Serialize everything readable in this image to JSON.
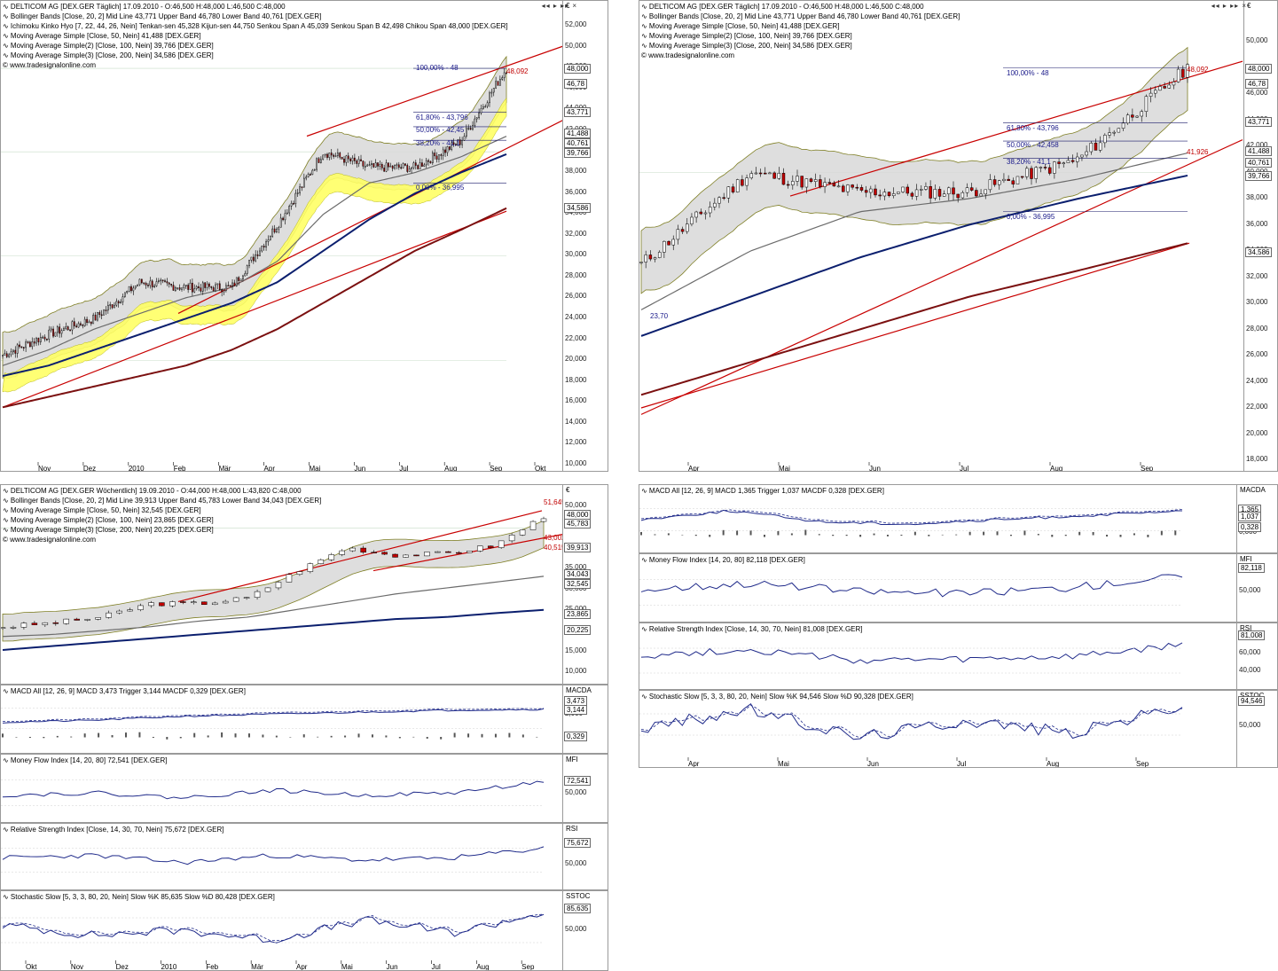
{
  "colors": {
    "band_fill": "#d9d9d9",
    "kumo": "#ffff66",
    "upper_band": "#6a6a00",
    "ma50": "#6b6b6b",
    "ma100": "#0b1f6e",
    "ma200": "#7b1010",
    "trend": "#c80000",
    "candle_up": "#ffffff",
    "candle_down": "#c00000",
    "osc": "#1f2a8a"
  },
  "panels": {
    "daily_long": {
      "legend": [
        "DELTICOM AG [DEX.GER  Täglich] 17.09.2010 - O:46,500 H:48,000 L:46,500 C:48,000",
        "Bollinger Bands [Close, 20, 2] Mid Line 43,771 Upper Band 46,780 Lower Band 40,761 [DEX.GER]",
        "Ichimoku Kinko Hyo [7, 22, 44, 26, Nein] Tenkan-sen 45,328 Kijun-sen 44,750 Senkou Span A 45,039 Senkou Span B 42,498 Chikou Span 48,000 [DEX.GER]",
        "Moving Average Simple [Close, 50, Nein] 41,488 [DEX.GER]",
        "Moving Average Simple(2) [Close, 100, Nein] 39,766 [DEX.GER]",
        "Moving Average Simple(3) [Close, 200, Nein] 34,586 [DEX.GER]",
        "© www.tradesignalonline.com"
      ],
      "currency": "€",
      "y_ticks": [
        "52,000",
        "50,000",
        "48,000",
        "46,000",
        "44,000",
        "42,000",
        "40,000",
        "38,000",
        "36,000",
        "34,000",
        "32,000",
        "30,000",
        "28,000",
        "26,000",
        "24,000",
        "22,000",
        "20,000",
        "18,000",
        "16,000",
        "14,000",
        "12,000",
        "10,000"
      ],
      "value_boxes": [
        "48,000",
        "46,78",
        "43,771",
        "41,488",
        "40,761",
        "39,766",
        "34,586"
      ],
      "fib": [
        "100,00% - 48",
        "61,80% - 43,796",
        "50,00% - 42,45",
        "38,20% - 41,1",
        "0,00% - 36,995"
      ],
      "price_label": "48,092",
      "x_labels": [
        "Nov",
        "Dez",
        "2010",
        "Feb",
        "Mär",
        "Apr",
        "Mai",
        "Jun",
        "Jul",
        "Aug",
        "Sep",
        "Okt"
      ]
    },
    "daily_short": {
      "legend": [
        "DELTICOM AG [DEX.GER  Täglich] 17.09.2010 - O:46,500 H:48,000 L:46,500 C:48,000",
        "Bollinger Bands [Close, 20, 2] Mid Line 43,771 Upper Band 46,780 Lower Band 40,761 [DEX.GER]",
        "Moving Average Simple [Close, 50, Nein] 41,488 [DEX.GER]",
        "Moving Average Simple(2) [Close, 100, Nein] 39,766 [DEX.GER]",
        "Moving Average Simple(3) [Close, 200, Nein] 34,586 [DEX.GER]",
        "© www.tradesignalonline.com"
      ],
      "currency": "€",
      "y_ticks": [
        "50,000",
        "48,000",
        "46,000",
        "44,000",
        "42,000",
        "40,000",
        "38,000",
        "36,000",
        "34,000",
        "32,000",
        "30,000",
        "28,000",
        "26,000",
        "24,000",
        "22,000",
        "20,000",
        "18,000"
      ],
      "value_boxes": [
        "48,000",
        "46,78",
        "43,771",
        "41,488",
        "40,761",
        "39,766",
        "34,586"
      ],
      "fib": [
        "100,00% - 48",
        "61,80% - 43,796",
        "50,00% - 42,458",
        "38,20% - 41,1",
        "0,00% - 36,995"
      ],
      "price_label": "48,092",
      "aux_label": "41,926",
      "low_label": "23,70",
      "x_labels": [
        "Apr",
        "Mai",
        "Jun",
        "Jul",
        "Aug",
        "Sep"
      ]
    },
    "weekly": {
      "legend": [
        "DELTICOM AG [DEX.GER  Wöchentlich] 19.09.2010 - O:44,000 H:48,000 L:43,820 C:48,000",
        "Bollinger Bands [Close, 20, 2] Mid Line 39,913 Upper Band 45,783 Lower Band 34,043 [DEX.GER]",
        "Moving Average Simple [Close, 50, Nein] 32,545 [DEX.GER]",
        "Moving Average Simple(2) [Close, 100, Nein] 23,865 [DEX.GER]",
        "Moving Average Simple(3) [Close, 200, Nein] 20,225 [DEX.GER]",
        "© www.tradesignalonline.com"
      ],
      "currency": "€",
      "y_ticks": [
        "50,000",
        "45,000",
        "40,000",
        "35,000",
        "30,000",
        "25,000",
        "20,000",
        "15,000",
        "10,000"
      ],
      "value_boxes": [
        "48,000",
        "45,783",
        "39,913",
        "34,043",
        "32,545",
        "23,865",
        "20,225"
      ],
      "labels": [
        "51,645",
        "43,002",
        "40,515"
      ]
    },
    "w_macd": {
      "legend": "MACD All [12, 26, 9] MACD 3,473 Trigger 3,144 MACDF 0,329 [DEX.GER]",
      "title": "MACDA",
      "y_ticks": [
        "2,000"
      ],
      "value_boxes": [
        "3,473",
        "3,144",
        "0,329"
      ]
    },
    "w_mfi": {
      "legend": "Money Flow Index [14, 20, 80] 72,541 [DEX.GER]",
      "title": "MFI",
      "y_ticks": [
        "50,000"
      ],
      "value_boxes": [
        "72,541"
      ]
    },
    "w_rsi": {
      "legend": "Relative Strength Index [Close, 14, 30, 70, Nein] 75,672 [DEX.GER]",
      "title": "RSI",
      "y_ticks": [
        "50,000"
      ],
      "value_boxes": [
        "75,672"
      ]
    },
    "w_sto": {
      "legend": "Stochastic Slow [5, 3, 3, 80, 20, Nein] Slow %K 85,635 Slow %D 80,428 [DEX.GER]",
      "title": "SSTOC",
      "y_ticks": [
        "50,000"
      ],
      "value_boxes": [
        "85,635"
      ],
      "x_labels": [
        "Okt",
        "Nov",
        "Dez",
        "2010",
        "Feb",
        "Mär",
        "Apr",
        "Mai",
        "Jun",
        "Jul",
        "Aug",
        "Sep",
        "Okt"
      ]
    },
    "d_macd": {
      "legend": "MACD All [12, 26, 9] MACD 1,365 Trigger 1,037 MACDF 0,328 [DEX.GER]",
      "title": "MACDA",
      "y_ticks": [
        "0,000"
      ],
      "value_boxes": [
        "1,365",
        "1,037",
        "0,328"
      ]
    },
    "d_mfi": {
      "legend": "Money Flow Index [14, 20, 80] 82,118 [DEX.GER]",
      "title": "MFI",
      "y_ticks": [
        "50,000"
      ],
      "value_boxes": [
        "82,118"
      ]
    },
    "d_rsi": {
      "legend": "Relative Strength Index [Close, 14, 30, 70, Nein] 81,008 [DEX.GER]",
      "title": "RSI",
      "y_ticks": [
        "60,000",
        "40,000"
      ],
      "value_boxes": [
        "81,008"
      ]
    },
    "d_sto": {
      "legend": "Stochastic Slow [5, 3, 3, 80, 20, Nein] Slow %K 94,546 Slow %D 90,328 [DEX.GER]",
      "title": "SSTOC",
      "y_ticks": [
        "50,000"
      ],
      "value_boxes": [
        "94,546"
      ],
      "x_labels": [
        "Apr",
        "Mai",
        "Jun",
        "Jul",
        "Aug",
        "Sep"
      ]
    }
  },
  "chart_data": [
    {
      "type": "line",
      "title": "DELTICOM AG [DEX.GER Täglich] 17.09.2010",
      "x": [
        "Okt",
        "Nov",
        "Dez",
        "2010",
        "Feb",
        "Mär",
        "Apr",
        "Mai",
        "Jun",
        "Jul",
        "Aug",
        "Sep"
      ],
      "series": [
        {
          "name": "Close",
          "values": [
            20.5,
            22.5,
            24.0,
            27.5,
            27.0,
            27.0,
            33.0,
            40.0,
            38.5,
            38.5,
            41.0,
            48.0
          ]
        },
        {
          "name": "Moving Average Simple [Close, 50, Nein]",
          "values": [
            19.5,
            21.0,
            23.0,
            24.5,
            26.0,
            27.0,
            29.5,
            34.0,
            37.0,
            38.0,
            39.5,
            41.488
          ]
        },
        {
          "name": "Moving Average Simple(2) [Close, 100, Nein]",
          "values": [
            18.5,
            19.5,
            21.0,
            22.5,
            24.0,
            25.5,
            27.5,
            30.5,
            33.5,
            36.0,
            38.0,
            39.766
          ]
        },
        {
          "name": "Moving Average Simple(3) [Close, 200, Nein]",
          "values": [
            15.5,
            16.5,
            17.5,
            18.5,
            19.5,
            21.0,
            23.0,
            25.5,
            28.0,
            30.5,
            32.5,
            34.586
          ]
        }
      ],
      "ylim": [
        10,
        52
      ]
    },
    {
      "type": "line",
      "title": "DELTICOM AG [DEX.GER Wöchentlich] 19.09.2010",
      "x": [
        "Okt",
        "Nov",
        "Dez",
        "2010",
        "Feb",
        "Mär",
        "Apr",
        "Mai",
        "Jun",
        "Jul",
        "Aug",
        "Sep"
      ],
      "series": [
        {
          "name": "Close",
          "values": [
            19.5,
            20.5,
            22.0,
            25.5,
            25.5,
            27.0,
            34.0,
            40.0,
            38.0,
            38.5,
            40.5,
            48.0
          ]
        },
        {
          "name": "Moving Average Simple [Close, 50, Nein]",
          "values": [
            17.0,
            17.5,
            18.5,
            19.5,
            21.0,
            22.0,
            24.0,
            26.0,
            28.0,
            29.5,
            31.0,
            32.545
          ]
        },
        {
          "name": "Moving Average Simple(2) [Close, 100, Nein]",
          "values": [
            13.5,
            14.5,
            15.5,
            16.5,
            17.5,
            18.5,
            19.5,
            20.5,
            21.5,
            22.0,
            23.0,
            23.865
          ]
        }
      ],
      "ylim": [
        8,
        55
      ]
    },
    {
      "type": "line",
      "title": "",
      "x": [
        "Apr",
        "Mai",
        "Jun",
        "Jul",
        "Aug",
        "Sep"
      ],
      "series": [
        {
          "name": "Money Flow Index [14, 20, 80]",
          "values": [
            55,
            68,
            52,
            48,
            60,
            82.118
          ]
        },
        {
          "name": "Relative Strength Index [Close, 14, 30, 70, Nein]",
          "values": [
            60,
            72,
            50,
            52,
            58,
            81.008
          ]
        },
        {
          "name": "Slow %K",
          "values": [
            40,
            85,
            20,
            60,
            30,
            94.546
          ]
        }
      ],
      "ylim": [
        0,
        100
      ]
    }
  ]
}
